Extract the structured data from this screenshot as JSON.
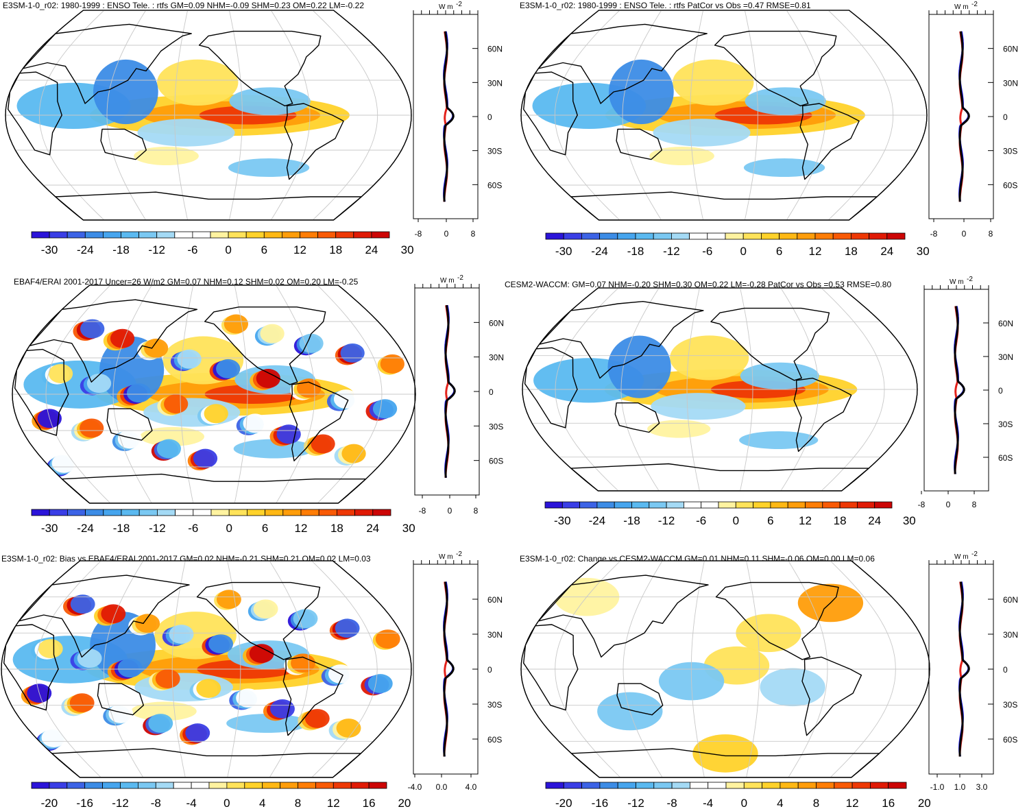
{
  "figure": {
    "variable": "rtfs",
    "units_label": "W m",
    "units_exp": "-2",
    "panels": [
      {
        "id": "p1",
        "title": "E3SM-1-0_r02: 1980-1999 : ENSO Tele. : rtfs GM=0.09 NHM=-0.09 SHM=0.23 OM=0.22 LM=-0.22",
        "colorbar_labels": [
          "-30",
          "-24",
          "-18",
          "-12",
          "-6",
          "0",
          "6",
          "12",
          "18",
          "24",
          "30"
        ],
        "zonal_xticks": [
          "-8",
          "0",
          "8"
        ],
        "lat_labels": [
          "60N",
          "30N",
          "0",
          "30S",
          "60S"
        ]
      },
      {
        "id": "p2",
        "title": "E3SM-1-0_r02: 1980-1999 : ENSO Tele. : rtfs PatCor vs Obs =0.47 RMSE=0.81",
        "colorbar_labels": [
          "-30",
          "-24",
          "-18",
          "-12",
          "-6",
          "0",
          "6",
          "12",
          "18",
          "24",
          "30"
        ],
        "zonal_xticks": [
          "-8",
          "0",
          "8"
        ],
        "lat_labels": [
          "60N",
          "30N",
          "0",
          "30S",
          "60S"
        ]
      },
      {
        "id": "p3",
        "title": "EBAF4/ERAI 2001-2017 Uncer=26 W/m2 GM=0.07 NHM=0.12 SHM=0.02 OM=0.20 LM=-0.25",
        "colorbar_labels": [
          "-30",
          "-24",
          "-18",
          "-12",
          "-6",
          "0",
          "6",
          "12",
          "18",
          "24",
          "30"
        ],
        "zonal_xticks": [
          "-8",
          "0",
          "8"
        ],
        "lat_labels": [
          "60N",
          "30N",
          "0",
          "30S",
          "60S"
        ]
      },
      {
        "id": "p4",
        "title": "CESM2-WACCM: GM=0.07 NHM=-0.20 SHM=0.30 OM=0.22 LM=-0.28 PatCor vs Obs =0.53 RMSE=0.80",
        "colorbar_labels": [
          "-30",
          "-24",
          "-18",
          "-12",
          "-6",
          "0",
          "6",
          "12",
          "18",
          "24",
          "30"
        ],
        "zonal_xticks": [
          "-8",
          "0",
          "8"
        ],
        "lat_labels": [
          "60N",
          "30N",
          "0",
          "30S",
          "60S"
        ]
      },
      {
        "id": "p5",
        "title": "E3SM-1-0_r02: Bias vs EBAF4/ERAI 2001-2017 GM=0.02 NHM=-0.21 SHM=0.21 OM=0.02 LM=0.03",
        "colorbar_labels": [
          "-20",
          "-16",
          "-12",
          "-8",
          "-4",
          "0",
          "4",
          "8",
          "12",
          "16",
          "20"
        ],
        "zonal_xticks": [
          "-4.0",
          "0.0",
          "4.0"
        ],
        "lat_labels": [
          "60N",
          "30N",
          "0",
          "30S",
          "60S"
        ]
      },
      {
        "id": "p6",
        "title": "E3SM-1-0_r02: Change vs CESM2-WACCM GM=0.01 NHM=0.11 SHM=-0.06 OM=0.00 LM=0.06",
        "colorbar_labels": [
          "-20",
          "-16",
          "-12",
          "-8",
          "-4",
          "0",
          "4",
          "8",
          "12",
          "16",
          "20"
        ],
        "zonal_xticks": [
          "-1.0",
          "1.0",
          "3.0"
        ],
        "lat_labels": [
          "60N",
          "30N",
          "0",
          "30S",
          "60S"
        ]
      }
    ],
    "colorbar_colors": [
      "#2b14d9",
      "#3a3ee6",
      "#3c63e6",
      "#3c8ce6",
      "#46a5ee",
      "#5ab9f0",
      "#7ac8f2",
      "#a4daf5",
      "#ffffff",
      "#ffffff",
      "#fff3a0",
      "#ffe35a",
      "#ffd22a",
      "#ffb814",
      "#ff9d0a",
      "#ff7d05",
      "#f95a05",
      "#ee3805",
      "#e01a05",
      "#cc0505"
    ],
    "series_colors": {
      "model": "#e3221b",
      "obs": "#1a1aee",
      "other": "#000000"
    }
  }
}
